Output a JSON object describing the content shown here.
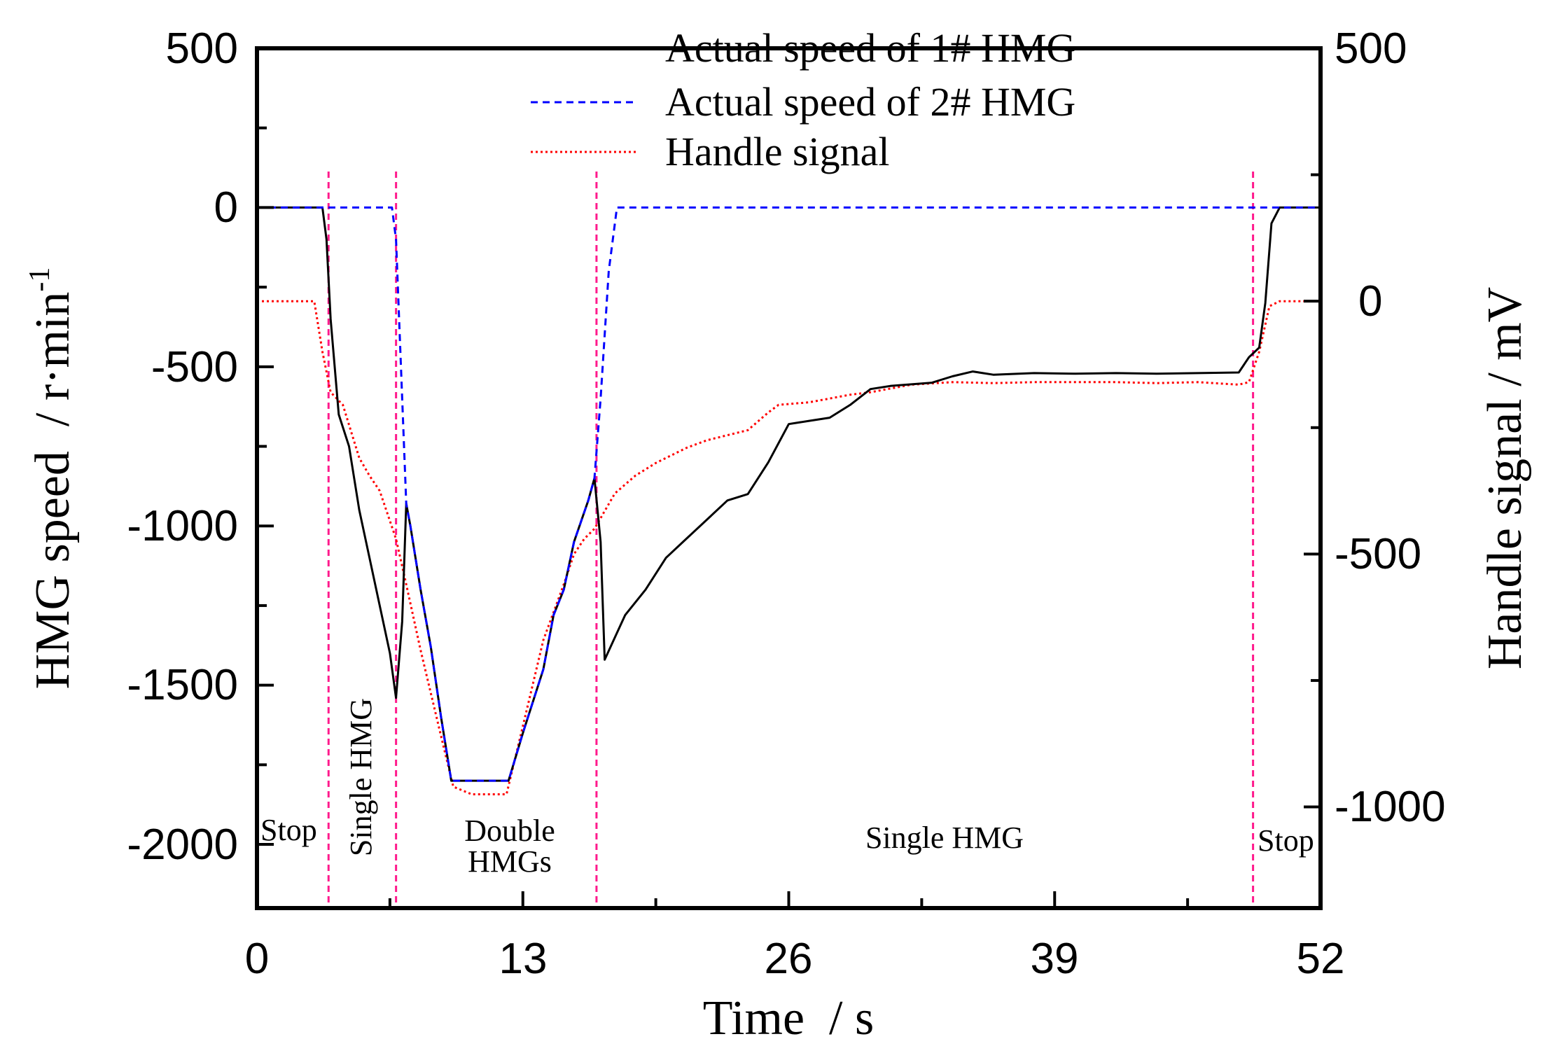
{
  "chart_data": {
    "type": "line",
    "x_axis": {
      "label": "Time  / s",
      "range": [
        0,
        52
      ],
      "ticks": [
        0,
        13,
        26,
        39,
        52
      ],
      "tick_labels": [
        "0",
        "13",
        "26",
        "39",
        "52"
      ]
    },
    "y_left": {
      "label": "HMG speed  / r·min",
      "label_superscript": "-1",
      "range": [
        -2200,
        500
      ],
      "ticks": [
        500,
        0,
        -500,
        -1000,
        -1500,
        -2000
      ],
      "tick_labels": [
        "500",
        "0",
        "-500",
        "-1000",
        "-1500",
        "-2000"
      ]
    },
    "y_right": {
      "label": "Handle signal / mV",
      "range": [
        -1200,
        500
      ],
      "ticks": [
        500,
        0,
        -500,
        -1000
      ],
      "tick_labels": [
        "500",
        "0",
        "-500",
        "-1000"
      ]
    },
    "legend": {
      "placement": "top-center",
      "entries": [
        "Actual speed of 1# HMG",
        "Actual speed of 2# HMG",
        "Handle signal"
      ]
    },
    "series": [
      {
        "name": "Actual speed of 1# HMG",
        "axis": "left",
        "color": "#000000",
        "style": "solid",
        "points": [
          [
            0,
            0
          ],
          [
            3.2,
            0
          ],
          [
            3.4,
            -100
          ],
          [
            3.6,
            -350
          ],
          [
            4.0,
            -650
          ],
          [
            4.5,
            -750
          ],
          [
            5.0,
            -950
          ],
          [
            5.5,
            -1100
          ],
          [
            6.0,
            -1250
          ],
          [
            6.5,
            -1400
          ],
          [
            6.8,
            -1540
          ],
          [
            7.1,
            -1300
          ],
          [
            7.3,
            -930
          ],
          [
            7.5,
            -1000
          ],
          [
            8.0,
            -1200
          ],
          [
            8.5,
            -1380
          ],
          [
            9.0,
            -1600
          ],
          [
            9.5,
            -1800
          ],
          [
            10.5,
            -1800
          ],
          [
            11.5,
            -1800
          ],
          [
            12.3,
            -1800
          ],
          [
            13.0,
            -1650
          ],
          [
            14.0,
            -1450
          ],
          [
            14.5,
            -1280
          ],
          [
            15.0,
            -1200
          ],
          [
            15.5,
            -1050
          ],
          [
            16.2,
            -920
          ],
          [
            16.5,
            -850
          ],
          [
            16.8,
            -1050
          ],
          [
            17.0,
            -1420
          ],
          [
            17.5,
            -1350
          ],
          [
            18.0,
            -1280
          ],
          [
            19.0,
            -1200
          ],
          [
            20.0,
            -1100
          ],
          [
            21.0,
            -1040
          ],
          [
            22.0,
            -980
          ],
          [
            23.0,
            -920
          ],
          [
            24.0,
            -900
          ],
          [
            25.0,
            -800
          ],
          [
            26.0,
            -680
          ],
          [
            27.0,
            -670
          ],
          [
            28.0,
            -660
          ],
          [
            29.0,
            -620
          ],
          [
            30.0,
            -570
          ],
          [
            31.0,
            -560
          ],
          [
            33.0,
            -550
          ],
          [
            34.0,
            -530
          ],
          [
            35.0,
            -515
          ],
          [
            36.0,
            -525
          ],
          [
            38.0,
            -520
          ],
          [
            40.0,
            -522
          ],
          [
            42.0,
            -520
          ],
          [
            44.0,
            -522
          ],
          [
            46.0,
            -520
          ],
          [
            48.0,
            -518
          ],
          [
            48.5,
            -470
          ],
          [
            49.0,
            -440
          ],
          [
            49.3,
            -300
          ],
          [
            49.6,
            -50
          ],
          [
            50.0,
            0
          ],
          [
            52.0,
            0
          ]
        ]
      },
      {
        "name": "Actual speed of 2# HMG",
        "axis": "left",
        "color": "#0000ff",
        "style": "dashed",
        "points": [
          [
            0,
            0
          ],
          [
            6.6,
            0
          ],
          [
            6.8,
            -100
          ],
          [
            7.1,
            -600
          ],
          [
            7.3,
            -930
          ],
          [
            7.5,
            -1000
          ],
          [
            8.0,
            -1200
          ],
          [
            8.5,
            -1380
          ],
          [
            9.0,
            -1600
          ],
          [
            9.5,
            -1800
          ],
          [
            10.5,
            -1800
          ],
          [
            11.5,
            -1800
          ],
          [
            12.3,
            -1800
          ],
          [
            13.0,
            -1650
          ],
          [
            14.0,
            -1450
          ],
          [
            14.5,
            -1280
          ],
          [
            15.0,
            -1200
          ],
          [
            15.5,
            -1050
          ],
          [
            16.2,
            -920
          ],
          [
            16.5,
            -850
          ],
          [
            16.8,
            -600
          ],
          [
            17.2,
            -200
          ],
          [
            17.6,
            0
          ],
          [
            52.0,
            0
          ]
        ]
      },
      {
        "name": "Handle signal",
        "axis": "right",
        "color": "#ff0000",
        "style": "dotted",
        "points": [
          [
            0,
            0
          ],
          [
            2.8,
            0
          ],
          [
            3.2,
            -100
          ],
          [
            3.6,
            -180
          ],
          [
            4.2,
            -205
          ],
          [
            5.0,
            -310
          ],
          [
            5.5,
            -345
          ],
          [
            6.0,
            -375
          ],
          [
            6.8,
            -470
          ],
          [
            7.3,
            -560
          ],
          [
            8.0,
            -690
          ],
          [
            9.0,
            -860
          ],
          [
            9.6,
            -960
          ],
          [
            10.5,
            -975
          ],
          [
            11.5,
            -975
          ],
          [
            12.2,
            -975
          ],
          [
            13.0,
            -840
          ],
          [
            14.0,
            -670
          ],
          [
            15.0,
            -560
          ],
          [
            15.5,
            -500
          ],
          [
            16.0,
            -470
          ],
          [
            16.5,
            -450
          ],
          [
            17.5,
            -380
          ],
          [
            18.5,
            -345
          ],
          [
            19.5,
            -320
          ],
          [
            21.0,
            -290
          ],
          [
            22.0,
            -275
          ],
          [
            23.0,
            -265
          ],
          [
            24.0,
            -255
          ],
          [
            25.0,
            -220
          ],
          [
            25.5,
            -205
          ],
          [
            27.0,
            -200
          ],
          [
            29.0,
            -185
          ],
          [
            30.0,
            -180
          ],
          [
            32.0,
            -165
          ],
          [
            34.0,
            -160
          ],
          [
            36.0,
            -162
          ],
          [
            38.0,
            -160
          ],
          [
            40.0,
            -160
          ],
          [
            42.0,
            -160
          ],
          [
            44.0,
            -162
          ],
          [
            46.0,
            -160
          ],
          [
            48.0,
            -165
          ],
          [
            48.5,
            -160
          ],
          [
            49.0,
            -100
          ],
          [
            49.5,
            -10
          ],
          [
            50.0,
            0
          ],
          [
            52.0,
            0
          ]
        ]
      }
    ],
    "phase_dividers": [
      3.5,
      6.8,
      16.6,
      48.7
    ],
    "phase_annotations": [
      "Stop",
      "Single HMG",
      "Double\nHMGs",
      "Single HMG",
      "Stop"
    ]
  }
}
